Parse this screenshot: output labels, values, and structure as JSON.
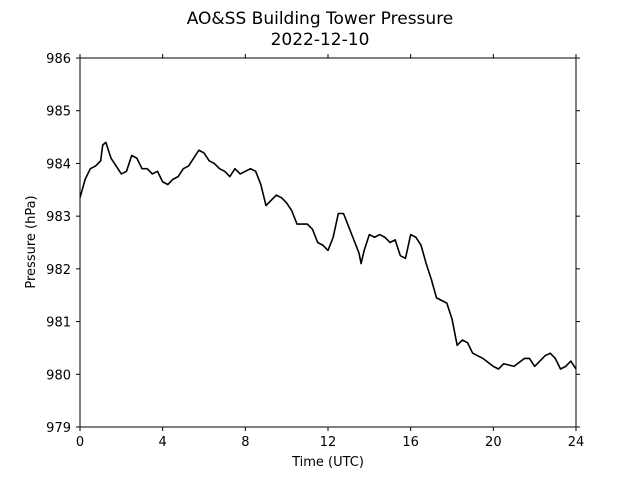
{
  "chart_data": {
    "type": "line",
    "title": "AO&SS Building Tower Pressure",
    "subtitle": "2022-12-10",
    "x_label": "Time (UTC)",
    "y_label": "Pressure (hPa)",
    "xlim": [
      0,
      24
    ],
    "xticks": [
      0,
      4,
      8,
      12,
      16,
      20,
      24
    ],
    "ylim": [
      979,
      986
    ],
    "yticks": [
      979,
      980,
      981,
      982,
      983,
      984,
      985,
      986
    ],
    "series": [
      {
        "color": "#000000",
        "x": [
          0,
          0.25,
          0.5,
          0.75,
          1.0,
          1.1,
          1.25,
          1.5,
          1.75,
          2.0,
          2.25,
          2.5,
          2.75,
          3.0,
          3.25,
          3.5,
          3.75,
          4.0,
          4.25,
          4.5,
          4.75,
          5.0,
          5.25,
          5.5,
          5.75,
          6.0,
          6.25,
          6.5,
          6.75,
          7.0,
          7.25,
          7.5,
          7.75,
          8.0,
          8.25,
          8.5,
          8.75,
          9.0,
          9.25,
          9.5,
          9.75,
          10.0,
          10.25,
          10.5,
          10.75,
          11.0,
          11.25,
          11.5,
          11.75,
          12.0,
          12.25,
          12.5,
          12.75,
          13.0,
          13.25,
          13.5,
          13.6,
          13.75,
          14.0,
          14.25,
          14.5,
          14.75,
          15.0,
          15.25,
          15.5,
          15.75,
          16.0,
          16.25,
          16.5,
          16.75,
          17.0,
          17.25,
          17.5,
          17.75,
          18.0,
          18.25,
          18.5,
          18.75,
          19.0,
          19.5,
          20.0,
          20.25,
          20.5,
          21.0,
          21.5,
          21.75,
          22.0,
          22.5,
          22.75,
          23.0,
          23.25,
          23.5,
          23.75,
          24.0
        ],
        "values": [
          983.35,
          983.7,
          983.9,
          983.95,
          984.05,
          984.35,
          984.4,
          984.1,
          983.95,
          983.8,
          983.85,
          984.15,
          984.1,
          983.9,
          983.9,
          983.8,
          983.85,
          983.65,
          983.6,
          983.7,
          983.75,
          983.9,
          983.95,
          984.1,
          984.25,
          984.2,
          984.05,
          984.0,
          983.9,
          983.85,
          983.75,
          983.9,
          983.8,
          983.85,
          983.9,
          983.85,
          983.6,
          983.2,
          983.3,
          983.4,
          983.35,
          983.25,
          983.1,
          982.85,
          982.85,
          982.85,
          982.75,
          982.5,
          982.45,
          982.35,
          982.6,
          983.05,
          983.05,
          982.8,
          982.55,
          982.3,
          982.1,
          982.35,
          982.65,
          982.6,
          982.65,
          982.6,
          982.5,
          982.55,
          982.25,
          982.2,
          982.65,
          982.6,
          982.45,
          982.1,
          981.8,
          981.45,
          981.4,
          981.35,
          981.05,
          980.55,
          980.65,
          980.6,
          980.4,
          980.3,
          980.15,
          980.1,
          980.2,
          980.15,
          980.3,
          980.3,
          980.15,
          980.35,
          980.4,
          980.3,
          980.1,
          980.15,
          980.25,
          980.1
        ]
      }
    ]
  }
}
